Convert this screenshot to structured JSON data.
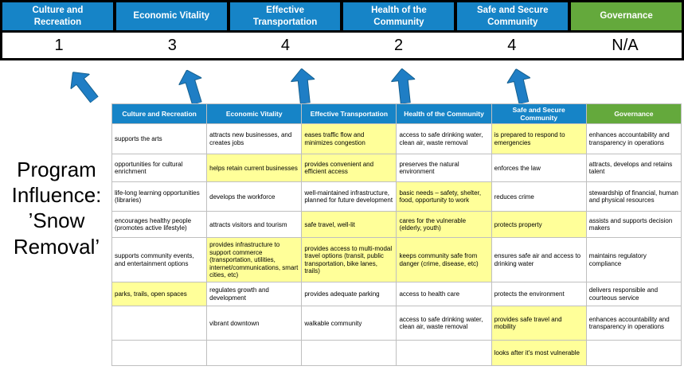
{
  "title": "Program Influence: ’Snow Removal’",
  "colors": {
    "blue": "#1684C7",
    "green": "#64A93C",
    "yellow": "#FFFF99",
    "arrow": "#1F7EC5",
    "arrow-stroke": "#15608F",
    "grid": "#BFBFBF",
    "banner-bg": "#000000"
  },
  "scoreboard": {
    "columns": [
      {
        "label": "Culture and Recreation",
        "score": "1",
        "color": "blue"
      },
      {
        "label": "Economic Vitality",
        "score": "3",
        "color": "blue"
      },
      {
        "label": "Effective Transportation",
        "score": "4",
        "color": "blue"
      },
      {
        "label": "Health of the Community",
        "score": "2",
        "color": "blue"
      },
      {
        "label": "Safe and Secure Community",
        "score": "4",
        "color": "blue"
      },
      {
        "label": "Governance",
        "score": "N/A",
        "color": "green"
      }
    ]
  },
  "arrows": {
    "count": 5
  },
  "matrix": {
    "headers": [
      {
        "label": "Culture and Recreation",
        "color": "blue"
      },
      {
        "label": "Economic Vitality",
        "color": "blue"
      },
      {
        "label": "Effective Transportation",
        "color": "blue"
      },
      {
        "label": "Health of the Community",
        "color": "blue"
      },
      {
        "label": "Safe and Secure Community",
        "color": "blue"
      },
      {
        "label": "Governance",
        "color": "green"
      }
    ],
    "rows": [
      [
        {
          "text": "supports the arts",
          "highlight": false
        },
        {
          "text": "attracts new businesses, and creates jobs",
          "highlight": false
        },
        {
          "text": "eases traffic flow and minimizes congestion",
          "highlight": true
        },
        {
          "text": "access to safe drinking water, clean air, waste removal",
          "highlight": false
        },
        {
          "text": "is prepared to respond to emergencies",
          "highlight": true
        },
        {
          "text": "enhances accountability and transparency in operations",
          "highlight": false
        }
      ],
      [
        {
          "text": "opportunities for cultural enrichment",
          "highlight": false
        },
        {
          "text": "helps retain current businesses",
          "highlight": true
        },
        {
          "text": "provides convenient and efficient access",
          "highlight": true
        },
        {
          "text": "preserves the natural environment",
          "highlight": false
        },
        {
          "text": "enforces the law",
          "highlight": false
        },
        {
          "text": "attracts, develops and retains talent",
          "highlight": false
        }
      ],
      [
        {
          "text": "life-long learning opportunities (libraries)",
          "highlight": false
        },
        {
          "text": "develops the workforce",
          "highlight": false
        },
        {
          "text": "well-maintained infrastructure, planned for future development",
          "highlight": false
        },
        {
          "text": "basic needs – safety, shelter, food, opportunity to work",
          "highlight": true
        },
        {
          "text": "reduces crime",
          "highlight": false
        },
        {
          "text": "stewardship of financial, human and physical resources",
          "highlight": false
        }
      ],
      [
        {
          "text": "encourages healthy people (promotes active lifestyle)",
          "highlight": false
        },
        {
          "text": "attracts visitors and tourism",
          "highlight": false
        },
        {
          "text": "safe travel, well-lit",
          "highlight": true
        },
        {
          "text": "cares for the vulnerable (elderly, youth)",
          "highlight": true
        },
        {
          "text": "protects property",
          "highlight": true
        },
        {
          "text": "assists and supports decision makers",
          "highlight": false
        }
      ],
      [
        {
          "text": "supports community events, and entertainment options",
          "highlight": false
        },
        {
          "text": "provides infrastructure to support commerce (transportation, utilities, internet/communications, smart cities, etc)",
          "highlight": true
        },
        {
          "text": "provides access to multi-modal travel options (transit, public transportation, bike lanes, trails)",
          "highlight": true
        },
        {
          "text": "keeps community safe from danger (crime, disease, etc)",
          "highlight": true
        },
        {
          "text": "ensures safe air and access to drinking water",
          "highlight": false
        },
        {
          "text": "maintains regulatory compliance",
          "highlight": false
        }
      ],
      [
        {
          "text": "parks, trails, open spaces",
          "highlight": true
        },
        {
          "text": "regulates growth and development",
          "highlight": false
        },
        {
          "text": "provides adequate parking",
          "highlight": false
        },
        {
          "text": "access to health care",
          "highlight": false
        },
        {
          "text": "protects the environment",
          "highlight": false
        },
        {
          "text": "delivers responsible and courteous service",
          "highlight": false
        }
      ],
      [
        {
          "text": "",
          "highlight": false
        },
        {
          "text": "vibrant downtown",
          "highlight": false
        },
        {
          "text": "walkable community",
          "highlight": false
        },
        {
          "text": "access to safe drinking water, clean air, waste removal",
          "highlight": false
        },
        {
          "text": "provides safe travel and mobility",
          "highlight": true
        },
        {
          "text": "enhances accountability and transparency in operations",
          "highlight": false
        }
      ],
      [
        {
          "text": "",
          "highlight": false
        },
        {
          "text": "",
          "highlight": false
        },
        {
          "text": "",
          "highlight": false
        },
        {
          "text": "",
          "highlight": false
        },
        {
          "text": "looks after it's most vulnerable",
          "highlight": true
        },
        {
          "text": "",
          "highlight": false
        }
      ]
    ]
  }
}
